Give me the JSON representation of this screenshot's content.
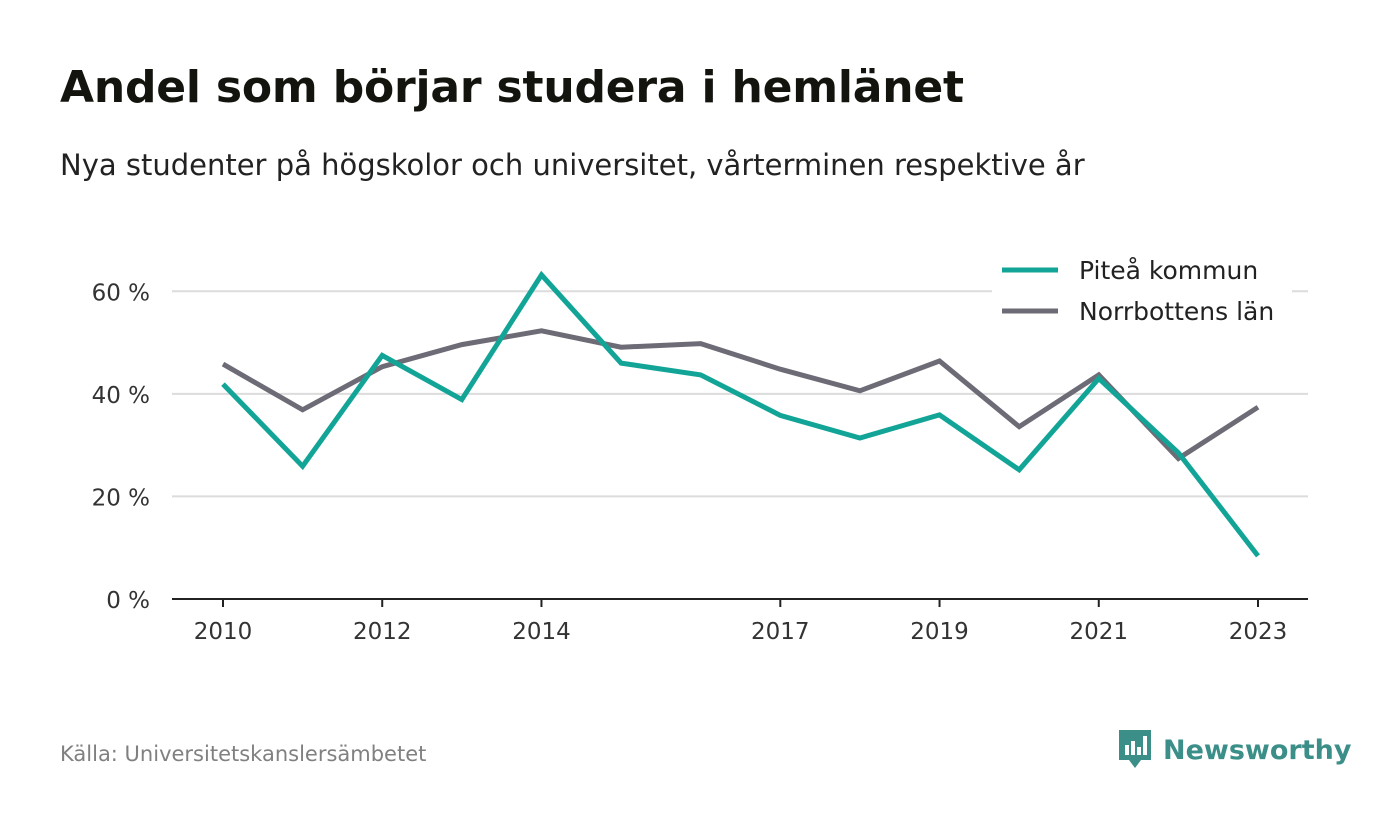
{
  "title": "Andel som börjar studera i hemlänet",
  "subtitle": "Nya studenter på högskolor och universitet, vårterminen respektive år",
  "source": "Källa: Universitetskanslersämbetet",
  "brand": {
    "name": "Newsworthy",
    "icon": "newsworthy-logo-icon",
    "color": "#3b8f88"
  },
  "chart_data": {
    "type": "line",
    "title": "Andel som börjar studera i hemlänet",
    "subtitle": "Nya studenter på högskolor och universitet, vårterminen respektive år",
    "x": [
      2010,
      2011,
      2012,
      2013,
      2014,
      2015,
      2016,
      2017,
      2018,
      2019,
      2020,
      2021,
      2022,
      2023
    ],
    "x_ticks": [
      2010,
      2012,
      2014,
      2017,
      2019,
      2021,
      2023
    ],
    "y_ticks": [
      0,
      20,
      40,
      60
    ],
    "y_tick_labels": [
      "0 %",
      "20 %",
      "40 %",
      "60 %"
    ],
    "ylim": [
      0,
      70
    ],
    "grid": true,
    "legend_position": "top-right",
    "series": [
      {
        "name": "Piteå kommun",
        "color": "#12a597",
        "values": [
          41.9,
          25.9,
          47.5,
          38.9,
          63.2,
          46.0,
          43.7,
          35.8,
          31.4,
          35.9,
          25.2,
          43.0,
          28.5,
          8.4
        ]
      },
      {
        "name": "Norrbottens län",
        "color": "#6d6c76",
        "values": [
          45.8,
          36.9,
          45.3,
          49.6,
          52.3,
          49.1,
          49.8,
          44.8,
          40.6,
          46.4,
          33.6,
          43.7,
          27.4,
          37.4
        ]
      }
    ]
  }
}
